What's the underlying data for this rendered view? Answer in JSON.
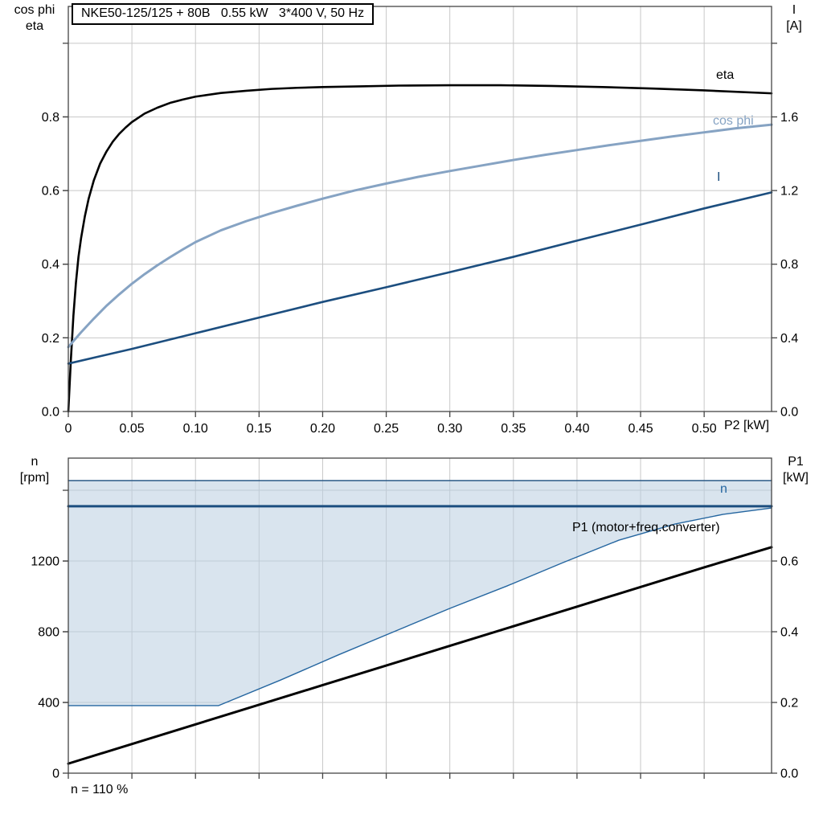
{
  "colors": {
    "grid": "#c8c8c8",
    "axis": "#444444",
    "black": "#000000",
    "cos_phi_blue": "#86a3c3",
    "dark_blue": "#1c4e7f",
    "n_blue": "#2566a0",
    "area_fill": "#b9cde0"
  },
  "chart_data": [
    {
      "type": "line",
      "title": "NKE50-125/125 + 80B   0.55 kW   3*400 V, 50 Hz",
      "x_axis": {
        "label": "P2 [kW]",
        "range": [
          0,
          0.553
        ],
        "grid": [
          0.05,
          0.1,
          0.15,
          0.2,
          0.25,
          0.3,
          0.35,
          0.4,
          0.45,
          0.5
        ],
        "ticks": [
          {
            "v": 0,
            "t": "0"
          },
          {
            "v": 0.05,
            "t": "0.05"
          },
          {
            "v": 0.1,
            "t": "0.10"
          },
          {
            "v": 0.15,
            "t": "0.15"
          },
          {
            "v": 0.2,
            "t": "0.20"
          },
          {
            "v": 0.25,
            "t": "0.25"
          },
          {
            "v": 0.3,
            "t": "0.30"
          },
          {
            "v": 0.35,
            "t": "0.35"
          },
          {
            "v": 0.4,
            "t": "0.40"
          },
          {
            "v": 0.45,
            "t": "0.45"
          },
          {
            "v": 0.5,
            "t": "0.50"
          }
        ]
      },
      "left_axis": {
        "label_lines": [
          "cos phi",
          "eta"
        ],
        "range": [
          0,
          1.1
        ],
        "grid": [
          0.2,
          0.4,
          0.6,
          0.8,
          1.0
        ],
        "ticks": [
          {
            "v": 0.0,
            "t": "0.0"
          },
          {
            "v": 0.2,
            "t": "0.2"
          },
          {
            "v": 0.4,
            "t": "0.4"
          },
          {
            "v": 0.6,
            "t": "0.6"
          },
          {
            "v": 0.8,
            "t": "0.8"
          }
        ]
      },
      "right_axis": {
        "label_lines": [
          "I",
          "[A]"
        ],
        "range": [
          0,
          2.2
        ],
        "grid": [],
        "ticks": [
          {
            "v": 0.0,
            "t": "0.0"
          },
          {
            "v": 0.4,
            "t": "0.4"
          },
          {
            "v": 0.8,
            "t": "0.8"
          },
          {
            "v": 1.2,
            "t": "1.2"
          },
          {
            "v": 1.6,
            "t": "1.6"
          },
          {
            "v": 2.0,
            "t": ""
          }
        ]
      },
      "series": [
        {
          "name": "eta",
          "label": "eta",
          "axis": "left",
          "color": "#000000",
          "width": 2.6,
          "points": [
            [
              0,
              0
            ],
            [
              0.002,
              0.14
            ],
            [
              0.004,
              0.26
            ],
            [
              0.006,
              0.35
            ],
            [
              0.008,
              0.42
            ],
            [
              0.01,
              0.47
            ],
            [
              0.013,
              0.53
            ],
            [
              0.016,
              0.578
            ],
            [
              0.02,
              0.627
            ],
            [
              0.025,
              0.673
            ],
            [
              0.03,
              0.706
            ],
            [
              0.035,
              0.733
            ],
            [
              0.04,
              0.754
            ],
            [
              0.045,
              0.771
            ],
            [
              0.05,
              0.786
            ],
            [
              0.06,
              0.809
            ],
            [
              0.07,
              0.825
            ],
            [
              0.08,
              0.838
            ],
            [
              0.09,
              0.847
            ],
            [
              0.1,
              0.855
            ],
            [
              0.12,
              0.865
            ],
            [
              0.14,
              0.871
            ],
            [
              0.16,
              0.876
            ],
            [
              0.18,
              0.879
            ],
            [
              0.2,
              0.881
            ],
            [
              0.23,
              0.883
            ],
            [
              0.26,
              0.885
            ],
            [
              0.3,
              0.886
            ],
            [
              0.34,
              0.886
            ],
            [
              0.38,
              0.884
            ],
            [
              0.42,
              0.881
            ],
            [
              0.46,
              0.877
            ],
            [
              0.5,
              0.872
            ],
            [
              0.553,
              0.864
            ]
          ]
        },
        {
          "name": "cos-phi",
          "label": "cos phi",
          "axis": "left",
          "color": "#86a3c3",
          "width": 3,
          "points": [
            [
              0,
              0.175
            ],
            [
              0.01,
              0.215
            ],
            [
              0.02,
              0.252
            ],
            [
              0.03,
              0.287
            ],
            [
              0.04,
              0.318
            ],
            [
              0.05,
              0.347
            ],
            [
              0.06,
              0.373
            ],
            [
              0.07,
              0.397
            ],
            [
              0.08,
              0.419
            ],
            [
              0.09,
              0.44
            ],
            [
              0.1,
              0.46
            ],
            [
              0.12,
              0.492
            ],
            [
              0.14,
              0.517
            ],
            [
              0.16,
              0.539
            ],
            [
              0.18,
              0.559
            ],
            [
              0.2,
              0.578
            ],
            [
              0.225,
              0.6
            ],
            [
              0.25,
              0.619
            ],
            [
              0.275,
              0.637
            ],
            [
              0.3,
              0.653
            ],
            [
              0.325,
              0.668
            ],
            [
              0.35,
              0.683
            ],
            [
              0.375,
              0.697
            ],
            [
              0.4,
              0.71
            ],
            [
              0.425,
              0.723
            ],
            [
              0.45,
              0.735
            ],
            [
              0.475,
              0.747
            ],
            [
              0.5,
              0.758
            ],
            [
              0.525,
              0.769
            ],
            [
              0.553,
              0.779
            ]
          ]
        },
        {
          "name": "current",
          "label": "I",
          "axis": "right",
          "color": "#1c4e7f",
          "width": 2.6,
          "points": [
            [
              0,
              0.26
            ],
            [
              0.05,
              0.34
            ],
            [
              0.1,
              0.425
            ],
            [
              0.15,
              0.51
            ],
            [
              0.2,
              0.595
            ],
            [
              0.25,
              0.675
            ],
            [
              0.3,
              0.757
            ],
            [
              0.35,
              0.84
            ],
            [
              0.4,
              0.928
            ],
            [
              0.45,
              1.015
            ],
            [
              0.5,
              1.103
            ],
            [
              0.553,
              1.19
            ]
          ]
        }
      ]
    },
    {
      "type": "line+area",
      "x_axis": {
        "label": "",
        "range": [
          0,
          0.553
        ],
        "grid": [
          0.05,
          0.1,
          0.15,
          0.2,
          0.25,
          0.3,
          0.35,
          0.4,
          0.45,
          0.5
        ],
        "ticks": [
          {
            "v": 0,
            "t": ""
          },
          {
            "v": 0.05,
            "t": ""
          },
          {
            "v": 0.1,
            "t": ""
          },
          {
            "v": 0.15,
            "t": ""
          },
          {
            "v": 0.2,
            "t": ""
          },
          {
            "v": 0.25,
            "t": ""
          },
          {
            "v": 0.3,
            "t": ""
          },
          {
            "v": 0.35,
            "t": ""
          },
          {
            "v": 0.4,
            "t": ""
          },
          {
            "v": 0.45,
            "t": ""
          },
          {
            "v": 0.5,
            "t": ""
          }
        ]
      },
      "left_axis": {
        "label_lines": [
          "n",
          "[rpm]"
        ],
        "range": [
          0,
          1782
        ],
        "grid": [
          400,
          800,
          1200,
          1600
        ],
        "ticks": [
          {
            "v": 0,
            "t": "0"
          },
          {
            "v": 400,
            "t": "400"
          },
          {
            "v": 800,
            "t": "800"
          },
          {
            "v": 1200,
            "t": "1200"
          }
        ]
      },
      "right_axis": {
        "label_lines": [
          "P1",
          "[kW]"
        ],
        "range": [
          0,
          0.891
        ],
        "grid": [],
        "ticks": [
          {
            "v": 0.0,
            "t": "0.0"
          },
          {
            "v": 0.2,
            "t": "0.2"
          },
          {
            "v": 0.4,
            "t": "0.4"
          },
          {
            "v": 0.6,
            "t": "0.6"
          }
        ]
      },
      "area": {
        "name": "speed-control-range",
        "color": "#b9cde0",
        "opacity": 0.55,
        "polygon": [
          [
            0,
            1655
          ],
          [
            0.553,
            1655
          ],
          [
            0.553,
            1500
          ],
          [
            0.515,
            1464
          ],
          [
            0.477,
            1409
          ],
          [
            0.433,
            1318
          ],
          [
            0.389,
            1191
          ],
          [
            0.345,
            1059
          ],
          [
            0.3,
            932
          ],
          [
            0.256,
            800
          ],
          [
            0.212,
            668
          ],
          [
            0.167,
            527
          ],
          [
            0.118,
            382
          ],
          [
            0,
            382
          ]
        ]
      },
      "series": [
        {
          "name": "n-max",
          "label": "",
          "axis": "left",
          "color": "#1c4e7f",
          "width": 1.4,
          "points": [
            [
              0,
              1655
            ],
            [
              0.553,
              1655
            ]
          ]
        },
        {
          "name": "n-min-boundary",
          "label": "",
          "axis": "left",
          "color": "#2566a0",
          "width": 1.4,
          "points": [
            [
              0,
              382
            ],
            [
              0.118,
              382
            ],
            [
              0.167,
              527
            ],
            [
              0.212,
              668
            ],
            [
              0.256,
              800
            ],
            [
              0.3,
              932
            ],
            [
              0.345,
              1059
            ],
            [
              0.389,
              1191
            ],
            [
              0.433,
              1318
            ],
            [
              0.477,
              1409
            ],
            [
              0.515,
              1464
            ],
            [
              0.553,
              1500
            ]
          ]
        },
        {
          "name": "n",
          "label": "n",
          "axis": "left",
          "color": "#1c4e7f",
          "width": 3,
          "points": [
            [
              0,
              1510
            ],
            [
              0.553,
              1510
            ]
          ]
        },
        {
          "name": "p1-total",
          "label": "P1 (motor+freq.converter)",
          "axis": "right",
          "color": "#000000",
          "width": 3,
          "points": [
            [
              0,
              0.027
            ],
            [
              0.1,
              0.138
            ],
            [
              0.2,
              0.249
            ],
            [
              0.3,
              0.36
            ],
            [
              0.4,
              0.471
            ],
            [
              0.5,
              0.582
            ],
            [
              0.553,
              0.639
            ]
          ]
        }
      ],
      "footnote": "n = 110 %"
    }
  ]
}
